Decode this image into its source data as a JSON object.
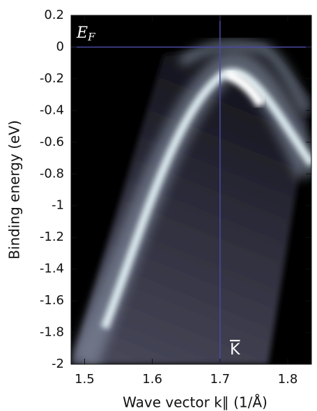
{
  "chart_data": {
    "type": "image",
    "xlabel": "Wave vector k∥ (1/Å)",
    "ylabel": "Binding energy (eV)",
    "xlim": [
      1.48,
      1.835
    ],
    "ylim": [
      -2,
      0.2
    ],
    "xticks": [
      1.5,
      1.6,
      1.7,
      1.8
    ],
    "yticks": [
      0.2,
      0,
      -0.2,
      -0.4,
      -0.6,
      -0.8,
      -1,
      -1.2,
      -1.4,
      -1.6,
      -1.8,
      -2
    ],
    "hlines": [
      0
    ],
    "vlines": [
      1.7
    ],
    "line_color": "#4a4aa8",
    "annotations": [
      {
        "text": "E",
        "subscript": "F"
      },
      {
        "text": "K"
      }
    ]
  }
}
